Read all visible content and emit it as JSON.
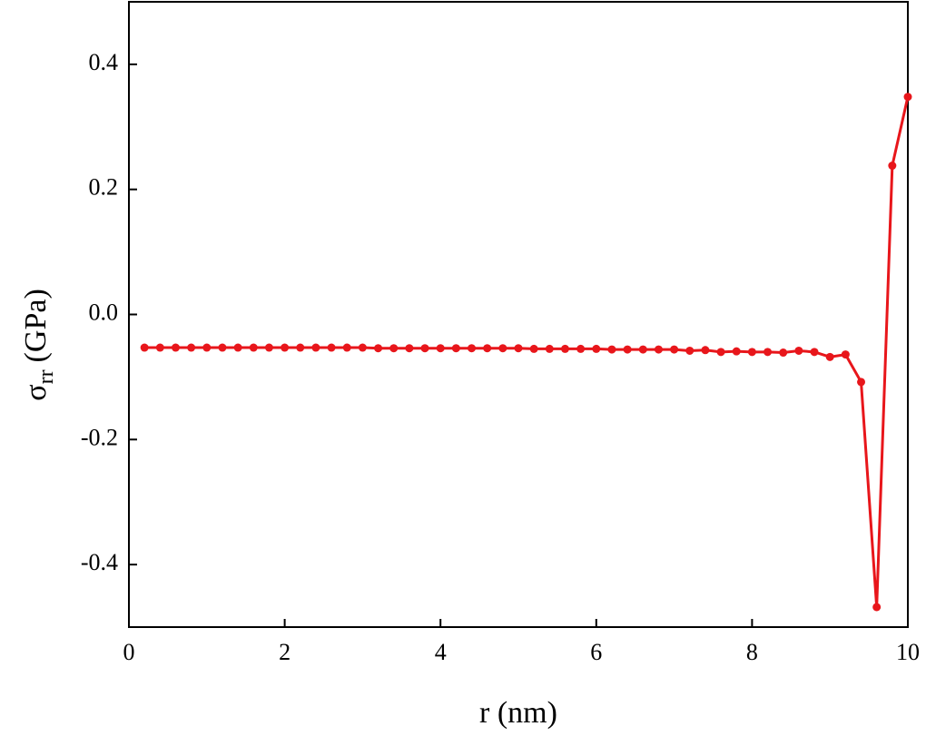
{
  "chart_data": {
    "type": "line",
    "x_label": "r (nm)",
    "y_label": {
      "symbol": "σ",
      "subscript": "rr",
      "unit": "(GPa)"
    },
    "x": [
      0.2,
      0.4,
      0.6,
      0.8,
      1.0,
      1.2,
      1.4,
      1.6,
      1.8,
      2.0,
      2.2,
      2.4,
      2.6,
      2.8,
      3.0,
      3.2,
      3.4,
      3.6,
      3.8,
      4.0,
      4.2,
      4.4,
      4.6,
      4.8,
      5.0,
      5.2,
      5.4,
      5.6,
      5.8,
      6.0,
      6.2,
      6.4,
      6.6,
      6.8,
      7.0,
      7.2,
      7.4,
      7.6,
      7.8,
      8.0,
      8.2,
      8.4,
      8.6,
      8.8,
      9.0,
      9.2,
      9.4,
      9.6,
      9.8,
      10.0
    ],
    "series": [
      {
        "color": "#e8161b",
        "values": [
          -0.053,
          -0.053,
          -0.053,
          -0.053,
          -0.053,
          -0.053,
          -0.053,
          -0.053,
          -0.053,
          -0.053,
          -0.053,
          -0.053,
          -0.053,
          -0.053,
          -0.053,
          -0.054,
          -0.054,
          -0.054,
          -0.054,
          -0.054,
          -0.054,
          -0.054,
          -0.054,
          -0.054,
          -0.054,
          -0.055,
          -0.055,
          -0.055,
          -0.055,
          -0.055,
          -0.056,
          -0.056,
          -0.056,
          -0.056,
          -0.056,
          -0.058,
          -0.057,
          -0.06,
          -0.059,
          -0.06,
          -0.06,
          -0.061,
          -0.058,
          -0.06,
          -0.068,
          -0.064,
          -0.108,
          -0.468,
          0.238,
          0.348
        ]
      }
    ],
    "xlim": [
      0,
      10
    ],
    "xticks": [
      0,
      2,
      4,
      6,
      8,
      10
    ],
    "ylim": [
      -0.5,
      0.5
    ],
    "yticks": [
      -0.4,
      -0.2,
      {
        "value": 0,
        "label": "0.0"
      },
      0.2,
      0.4
    ]
  }
}
